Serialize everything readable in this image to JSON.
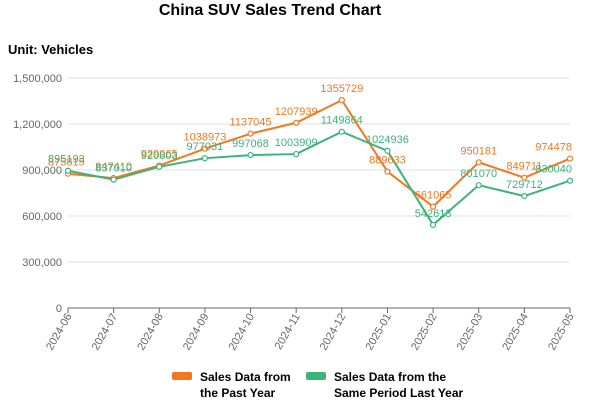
{
  "chart_data": {
    "type": "line",
    "title": "China SUV Sales Trend Chart",
    "unit_label": "Unit: Vehicles",
    "categories": [
      "2024-06",
      "2024-07",
      "2024-08",
      "2024-09",
      "2024-10",
      "2024-11",
      "2024-12",
      "2025-01",
      "2025-02",
      "2025-03",
      "2025-04",
      "2025-05"
    ],
    "ylim": [
      0,
      1500000
    ],
    "yticks": [
      0,
      300000,
      600000,
      900000,
      1200000,
      1500000
    ],
    "ytick_labels": [
      "0",
      "300,000",
      "600,000",
      "900,000",
      "1,200,000",
      "1,500,000"
    ],
    "grid": true,
    "series": [
      {
        "name": "Sales Data from the Past Year",
        "legend_lines": [
          "Sales Data from",
          "the Past Year"
        ],
        "color": "#F07820",
        "values": [
          875815,
          847410,
          929065,
          1038973,
          1137045,
          1207939,
          1355729,
          889633,
          661065,
          950181,
          849711,
          974478
        ]
      },
      {
        "name": "Sales Data from the Same Period Last Year",
        "legend_lines": [
          "Sales Data from the",
          "Same Period Last Year"
        ],
        "color": "#3CB37A",
        "values": [
          895193,
          837010,
          920803,
          977031,
          997068,
          1003909,
          1149864,
          1024936,
          542613,
          801070,
          729712,
          830040
        ]
      }
    ]
  }
}
